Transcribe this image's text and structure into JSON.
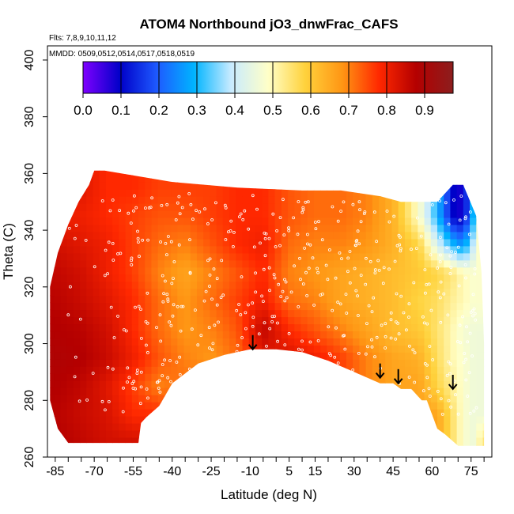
{
  "chart_data": {
    "type": "heatmap",
    "title": "ATOM4 Northbound jO3_dnwFrac_CAFS",
    "flights_note": "Flts: 7,8,9,10,11,12",
    "dates_note": "MMDD: 0509,0512,0514,0517,0518,0519",
    "xlabel": "Latitude (deg N)",
    "ylabel": "Theta (C)",
    "xlim": [
      -88,
      83
    ],
    "ylim": [
      260,
      405
    ],
    "x_ticks": [
      -85,
      -70,
      -55,
      -40,
      -25,
      -10,
      5,
      15,
      30,
      45,
      60,
      75
    ],
    "y_ticks": [
      260,
      280,
      300,
      320,
      340,
      360,
      380,
      400
    ],
    "colorbar": {
      "range": [
        0.0,
        0.975
      ],
      "ticks": [
        0.0,
        0.1,
        0.2,
        0.3,
        0.4,
        0.5,
        0.6,
        0.7,
        0.8,
        0.9
      ],
      "colors": [
        "#7f00ff",
        "#0000c8",
        "#1e5aff",
        "#00b4ff",
        "#c8ebff",
        "#ffffc8",
        "#ffd23c",
        "#ff9614",
        "#ff2800",
        "#b40000",
        "#8c1e1e"
      ]
    },
    "field": {
      "lat": [
        -85,
        -75,
        -65,
        -55,
        -45,
        -35,
        -25,
        -15,
        -5,
        5,
        15,
        25,
        35,
        45,
        55,
        62,
        68,
        72,
        76,
        80
      ],
      "theta": [
        265,
        275,
        285,
        295,
        305,
        315,
        325,
        335,
        345,
        355
      ],
      "values": [
        [
          0.88,
          0.86,
          0.84,
          null,
          null,
          null,
          null,
          null,
          null,
          null,
          null,
          null,
          null,
          null,
          null,
          null,
          null,
          null,
          null,
          null
        ],
        [
          0.87,
          0.85,
          0.83,
          0.78,
          null,
          null,
          null,
          null,
          null,
          null,
          null,
          null,
          null,
          null,
          null,
          0.66,
          0.55,
          0.48,
          0.46,
          null
        ],
        [
          0.88,
          0.86,
          0.82,
          0.76,
          0.7,
          0.72,
          null,
          null,
          null,
          null,
          null,
          null,
          null,
          null,
          0.66,
          0.58,
          0.52,
          0.48,
          0.46,
          null
        ],
        [
          0.89,
          0.88,
          0.85,
          0.8,
          0.74,
          0.7,
          0.68,
          0.72,
          0.82,
          0.83,
          0.8,
          0.76,
          0.7,
          0.66,
          0.64,
          0.56,
          0.5,
          0.48,
          0.46,
          null
        ],
        [
          0.88,
          0.87,
          0.84,
          0.78,
          0.72,
          0.68,
          0.7,
          0.74,
          0.86,
          0.78,
          0.74,
          0.7,
          0.66,
          0.62,
          0.6,
          0.55,
          0.5,
          0.47,
          0.46,
          null
        ],
        [
          0.87,
          0.85,
          0.82,
          0.78,
          0.72,
          0.68,
          0.72,
          0.76,
          0.8,
          0.72,
          0.7,
          0.66,
          0.64,
          0.62,
          0.58,
          0.56,
          0.52,
          0.5,
          0.48,
          null
        ],
        [
          0.86,
          0.84,
          0.8,
          0.76,
          0.7,
          0.66,
          0.7,
          0.74,
          0.78,
          0.7,
          0.68,
          0.66,
          0.64,
          0.62,
          0.6,
          0.58,
          0.54,
          0.5,
          0.48,
          null
        ],
        [
          0.84,
          0.82,
          0.8,
          0.76,
          0.72,
          0.7,
          0.74,
          0.78,
          0.8,
          0.72,
          0.7,
          0.7,
          0.68,
          0.64,
          0.58,
          0.42,
          0.3,
          0.25,
          0.4,
          0.55
        ],
        [
          null,
          0.8,
          0.78,
          0.76,
          0.74,
          0.74,
          0.76,
          0.78,
          0.78,
          0.74,
          0.72,
          0.72,
          0.7,
          0.64,
          0.48,
          0.3,
          0.1,
          0.08,
          0.3,
          0.55
        ],
        [
          null,
          0.82,
          0.78,
          0.78,
          0.76,
          0.76,
          null,
          null,
          null,
          null,
          null,
          null,
          null,
          null,
          null,
          null,
          null,
          null,
          null,
          null
        ]
      ]
    },
    "boundary": {
      "upper_points": [
        [
          -87,
          320
        ],
        [
          -84,
          332
        ],
        [
          -80,
          342
        ],
        [
          -76,
          350
        ],
        [
          -72,
          356
        ],
        [
          -70,
          361
        ],
        [
          -66,
          361
        ],
        [
          -40,
          357
        ],
        [
          -15,
          355
        ],
        [
          10,
          354
        ],
        [
          25,
          354
        ],
        [
          40,
          352
        ],
        [
          48,
          350
        ],
        [
          55,
          350
        ],
        [
          62,
          350
        ],
        [
          68,
          356
        ],
        [
          72,
          356
        ],
        [
          77,
          345
        ],
        [
          79,
          325
        ],
        [
          80,
          300
        ],
        [
          80,
          275
        ],
        [
          80,
          264
        ],
        [
          70,
          264
        ],
        [
          65,
          268
        ],
        [
          62,
          270
        ],
        [
          60,
          275
        ],
        [
          58,
          280
        ],
        [
          56,
          280
        ],
        [
          52,
          284
        ],
        [
          48,
          284
        ],
        [
          45,
          286
        ],
        [
          40,
          286
        ],
        [
          30,
          290
        ],
        [
          20,
          294
        ],
        [
          10,
          297
        ],
        [
          0,
          298
        ],
        [
          -10,
          298
        ],
        [
          -20,
          296
        ],
        [
          -30,
          293
        ],
        [
          -40,
          286
        ],
        [
          -45,
          278
        ],
        [
          -50,
          274
        ],
        [
          -52,
          272
        ],
        [
          -53,
          265
        ],
        [
          -80,
          265
        ],
        [
          -84,
          270
        ],
        [
          -87,
          280
        ]
      ]
    },
    "arrows": [
      {
        "lat": -9,
        "theta": 303
      },
      {
        "lat": 40,
        "theta": 293
      },
      {
        "lat": 47,
        "theta": 291
      },
      {
        "lat": 68,
        "theta": 289
      }
    ],
    "marker_color": "#ffffff"
  }
}
